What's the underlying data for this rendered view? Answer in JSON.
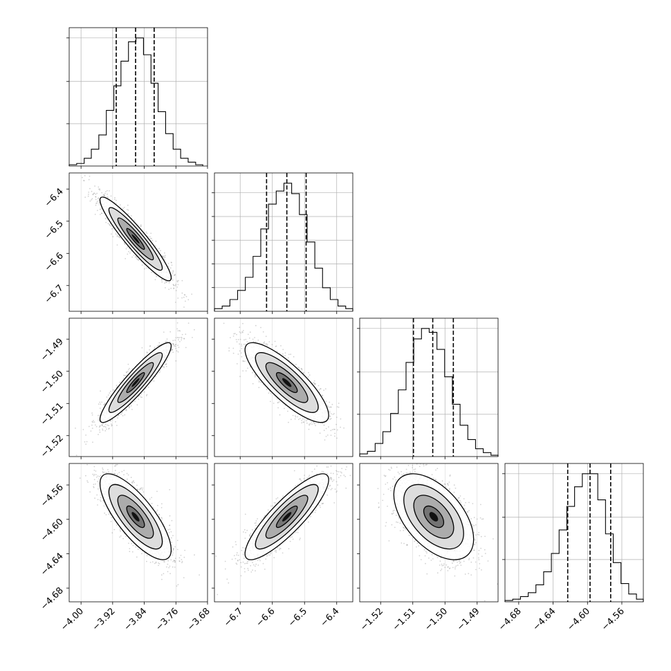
{
  "chart_data": {
    "type": "corner",
    "grid": true,
    "colors": {
      "ink": "#000000",
      "grid": "#b0b0b0",
      "scatter": "#7f7f7f"
    },
    "quantile_lines": [
      0.16,
      0.5,
      0.84
    ],
    "parameters": [
      {
        "range": [
          -4.03,
          -3.68
        ],
        "ticks": [
          -4.0,
          -3.92,
          -3.84,
          -3.76,
          -3.68
        ],
        "tick_labels": [
          "−4.00",
          "−3.92",
          "−3.84",
          "−3.76",
          "−3.68"
        ],
        "quantiles": [
          -3.911,
          -3.862,
          -3.815
        ],
        "hist_bin_edges": [
          -4.03,
          -4.011,
          -3.992,
          -3.974,
          -3.955,
          -3.936,
          -3.917,
          -3.899,
          -3.88,
          -3.861,
          -3.842,
          -3.823,
          -3.805,
          -3.786,
          -3.767,
          -3.748,
          -3.729,
          -3.71,
          -3.692
        ],
        "hist_counts": [
          0.01,
          0.02,
          0.06,
          0.13,
          0.24,
          0.43,
          0.62,
          0.81,
          0.96,
          0.99,
          0.86,
          0.64,
          0.42,
          0.25,
          0.13,
          0.06,
          0.03,
          0.01
        ],
        "hist_yticks": [
          0.33,
          0.66,
          1.0
        ]
      },
      {
        "range": [
          -6.78,
          -6.35
        ],
        "ticks": [
          -6.7,
          -6.6,
          -6.5,
          -6.4
        ],
        "tick_labels": [
          "−6.7",
          "−6.6",
          "−6.5",
          "−6.4"
        ],
        "quantiles": [
          -6.618,
          -6.555,
          -6.495
        ],
        "hist_bin_edges": [
          -6.78,
          -6.756,
          -6.732,
          -6.708,
          -6.684,
          -6.66,
          -6.636,
          -6.612,
          -6.588,
          -6.564,
          -6.54,
          -6.516,
          -6.492,
          -6.468,
          -6.444,
          -6.42,
          -6.396,
          -6.372,
          -6.35
        ],
        "hist_counts": [
          0.02,
          0.04,
          0.09,
          0.16,
          0.26,
          0.42,
          0.63,
          0.82,
          0.92,
          0.98,
          0.9,
          0.74,
          0.53,
          0.33,
          0.18,
          0.09,
          0.04,
          0.02
        ],
        "hist_yticks": [
          0.185,
          0.37,
          0.555,
          0.74,
          0.925
        ]
      },
      {
        "range": [
          -1.5265,
          -1.4835
        ],
        "ticks": [
          -1.52,
          -1.51,
          -1.5,
          -1.49
        ],
        "tick_labels": [
          "−1.52",
          "−1.51",
          "−1.50",
          "−1.49"
        ],
        "quantiles": [
          -1.5098,
          -1.5038,
          -1.4974
        ],
        "hist_bin_edges": [
          -1.5265,
          -1.5241,
          -1.5217,
          -1.5193,
          -1.5169,
          -1.5145,
          -1.5121,
          -1.5097,
          -1.5073,
          -1.5049,
          -1.5025,
          -1.5001,
          -1.4977,
          -1.4953,
          -1.4929,
          -1.4905,
          -1.4881,
          -1.4857,
          -1.4835
        ],
        "hist_counts": [
          0.02,
          0.04,
          0.1,
          0.19,
          0.33,
          0.51,
          0.72,
          0.9,
          0.98,
          0.95,
          0.82,
          0.61,
          0.4,
          0.24,
          0.13,
          0.06,
          0.03,
          0.01
        ],
        "hist_yticks": [
          0.33,
          0.66,
          1.0
        ]
      },
      {
        "range": [
          -4.696,
          -4.535
        ],
        "ticks": [
          -4.68,
          -4.64,
          -4.6,
          -4.56
        ],
        "tick_labels": [
          "−4.68",
          "−4.64",
          "−4.60",
          "−4.56"
        ],
        "quantiles": [
          -4.623,
          -4.597,
          -4.573
        ],
        "hist_bin_edges": [
          -4.696,
          -4.687,
          -4.678,
          -4.669,
          -4.66,
          -4.651,
          -4.642,
          -4.633,
          -4.624,
          -4.615,
          -4.606,
          -4.597,
          -4.588,
          -4.579,
          -4.57,
          -4.561,
          -4.552,
          -4.543,
          -4.535
        ],
        "hist_counts": [
          0.01,
          0.02,
          0.04,
          0.07,
          0.13,
          0.23,
          0.37,
          0.55,
          0.73,
          0.88,
          0.98,
          0.98,
          0.78,
          0.52,
          0.3,
          0.14,
          0.06,
          0.02
        ],
        "hist_yticks": [
          0.33,
          0.66,
          1.0
        ]
      }
    ],
    "pairs": [
      {
        "x": 0,
        "y": 1,
        "mean": [
          -3.862,
          -6.555
        ],
        "sd": [
          0.045,
          0.065
        ],
        "corr": -0.93
      },
      {
        "x": 0,
        "y": 2,
        "mean": [
          -3.862,
          -1.5035
        ],
        "sd": [
          0.045,
          0.0062
        ],
        "corr": 0.92
      },
      {
        "x": 1,
        "y": 2,
        "mean": [
          -6.555,
          -1.5035
        ],
        "sd": [
          0.065,
          0.0062
        ],
        "corr": -0.82
      },
      {
        "x": 0,
        "y": 3,
        "mean": [
          -3.862,
          -4.597
        ],
        "sd": [
          0.045,
          0.025
        ],
        "corr": -0.77
      },
      {
        "x": 1,
        "y": 3,
        "mean": [
          -6.555,
          -4.597
        ],
        "sd": [
          0.065,
          0.025
        ],
        "corr": 0.86
      },
      {
        "x": 2,
        "y": 3,
        "mean": [
          -1.5035,
          -4.597
        ],
        "sd": [
          0.0062,
          0.025
        ],
        "corr": -0.52
      }
    ],
    "contour_levels_sigma": [
      0.5,
      1.0,
      1.5,
      2.0
    ]
  }
}
